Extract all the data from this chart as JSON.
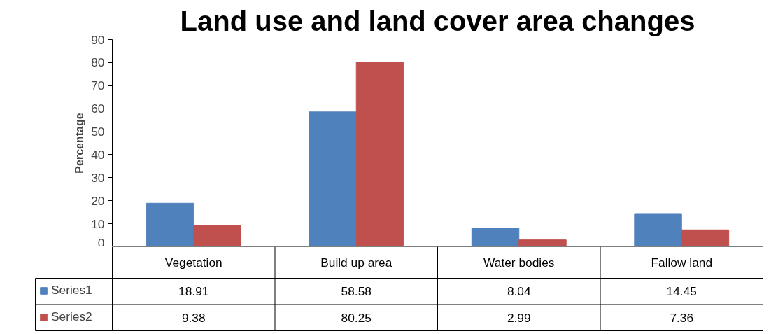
{
  "chart_data": {
    "type": "bar",
    "title": "Land use and land cover area changes",
    "ylabel": "Percentage",
    "categories": [
      "Vegetation",
      "Build up area",
      "Water bodies",
      "Fallow land"
    ],
    "series": [
      {
        "name": "Series1",
        "color": "#4f81bd",
        "values": [
          18.91,
          58.58,
          8.04,
          14.45
        ]
      },
      {
        "name": "Series2",
        "color": "#c0504d",
        "values": [
          9.38,
          80.25,
          2.99,
          7.36
        ]
      }
    ],
    "ylim": [
      0,
      90
    ],
    "yticks": [
      0,
      10,
      20,
      30,
      40,
      50,
      60,
      70,
      80,
      90
    ],
    "grid": false,
    "legend": "bottom",
    "data_labels": true
  }
}
